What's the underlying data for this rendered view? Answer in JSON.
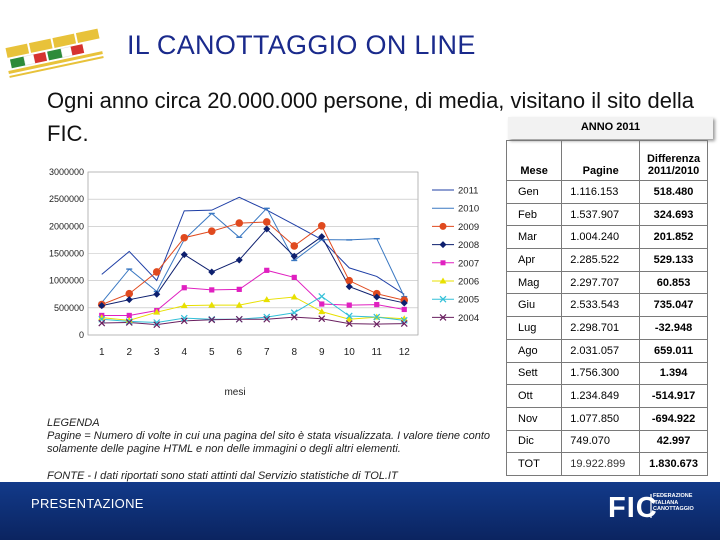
{
  "header": {
    "title": "IL CANOTTAGGIO ON LINE",
    "subtitle": "Ogni anno circa 20.000.000 persone, di media, visitano il sito della FIC."
  },
  "table": {
    "caption": "ANNO 2011",
    "columns": [
      "Mese",
      "Pagine",
      "Differenza 2011/2010"
    ],
    "rows": [
      {
        "month": "Gen",
        "pages": "1.116.153",
        "diff": "518.480"
      },
      {
        "month": "Feb",
        "pages": "1.537.907",
        "diff": "324.693"
      },
      {
        "month": "Mar",
        "pages": "1.004.240",
        "diff": "201.852"
      },
      {
        "month": "Apr",
        "pages": "2.285.522",
        "diff": "529.133"
      },
      {
        "month": "Mag",
        "pages": "2.297.707",
        "diff": "60.853"
      },
      {
        "month": "Giu",
        "pages": "2.533.543",
        "diff": "735.047"
      },
      {
        "month": "Lug",
        "pages": "2.298.701",
        "diff": "-32.948"
      },
      {
        "month": "Ago",
        "pages": "2.031.057",
        "diff": "659.011"
      },
      {
        "month": "Sett",
        "pages": "1.756.300",
        "diff": "1.394"
      },
      {
        "month": "Ott",
        "pages": "1.234.849",
        "diff": "-514.917"
      },
      {
        "month": "Nov",
        "pages": "1.077.850",
        "diff": "-694.922"
      },
      {
        "month": "Dic",
        "pages": "749.070",
        "diff": "42.997"
      },
      {
        "month": "TOT",
        "pages": "19.922.899",
        "diff": "1.830.673"
      }
    ]
  },
  "chart_data": {
    "type": "line",
    "xlabel": "mesi",
    "ylabel": "",
    "x": [
      1,
      2,
      3,
      4,
      5,
      6,
      7,
      8,
      9,
      10,
      11,
      12
    ],
    "ylim": [
      0,
      3000000
    ],
    "yticks": [
      "0",
      "500000",
      "1000000",
      "1500000",
      "2000000",
      "2500000",
      "3000000"
    ],
    "series": [
      {
        "name": "2011",
        "color": "#1f3fa6",
        "marker": "none",
        "values": [
          1116153,
          1537907,
          1004240,
          2285522,
          2297707,
          2533543,
          2298701,
          2031057,
          1756300,
          1234849,
          1077850,
          749070
        ]
      },
      {
        "name": "2010",
        "color": "#3a78c2",
        "marker": "dash",
        "values": [
          597673,
          1213214,
          802388,
          1756389,
          2236854,
          1798496,
          2331649,
          1372046,
          1754906,
          1749766,
          1772772,
          706073
        ]
      },
      {
        "name": "2009",
        "color": "#e04a1f",
        "marker": "circle",
        "values": [
          560000,
          760000,
          1160000,
          1790000,
          1910000,
          2060000,
          2080000,
          1640000,
          2010000,
          1000000,
          760000,
          640000
        ]
      },
      {
        "name": "2008",
        "color": "#0d1f6e",
        "marker": "diamond",
        "values": [
          540000,
          650000,
          750000,
          1480000,
          1160000,
          1380000,
          1950000,
          1450000,
          1810000,
          890000,
          700000,
          590000
        ]
      },
      {
        "name": "2007",
        "color": "#e020c0",
        "marker": "square",
        "values": [
          360000,
          360000,
          450000,
          870000,
          830000,
          840000,
          1190000,
          1060000,
          570000,
          550000,
          560000,
          470000
        ]
      },
      {
        "name": "2006",
        "color": "#e8e000",
        "marker": "triangle",
        "values": [
          320000,
          270000,
          420000,
          540000,
          550000,
          550000,
          650000,
          700000,
          430000,
          290000,
          330000,
          300000
        ]
      },
      {
        "name": "2005",
        "color": "#33c0d8",
        "marker": "x",
        "values": [
          290000,
          250000,
          230000,
          310000,
          290000,
          290000,
          330000,
          410000,
          710000,
          350000,
          330000,
          270000
        ]
      },
      {
        "name": "2004",
        "color": "#6a2060",
        "marker": "x",
        "values": [
          220000,
          230000,
          190000,
          260000,
          280000,
          290000,
          290000,
          330000,
          300000,
          210000,
          200000,
          210000
        ]
      }
    ]
  },
  "notes": {
    "legend_title": "LEGENDA",
    "legend_text": "Pagine = Numero di volte in cui una pagina del sito è stata visualizzata. I valore tiene conto solamente delle pagine HTML e non delle immagini o degli altri elementi.",
    "fonte": "FONTE - I dati riportati sono stati attinti dal Servizio statistiche di TOL.IT"
  },
  "footer": {
    "label": "PRESENTAZIONE",
    "logo_text": "FIC",
    "logo_sub": "FEDERAZIONE ITALIANA CANOTTAGGIO"
  }
}
